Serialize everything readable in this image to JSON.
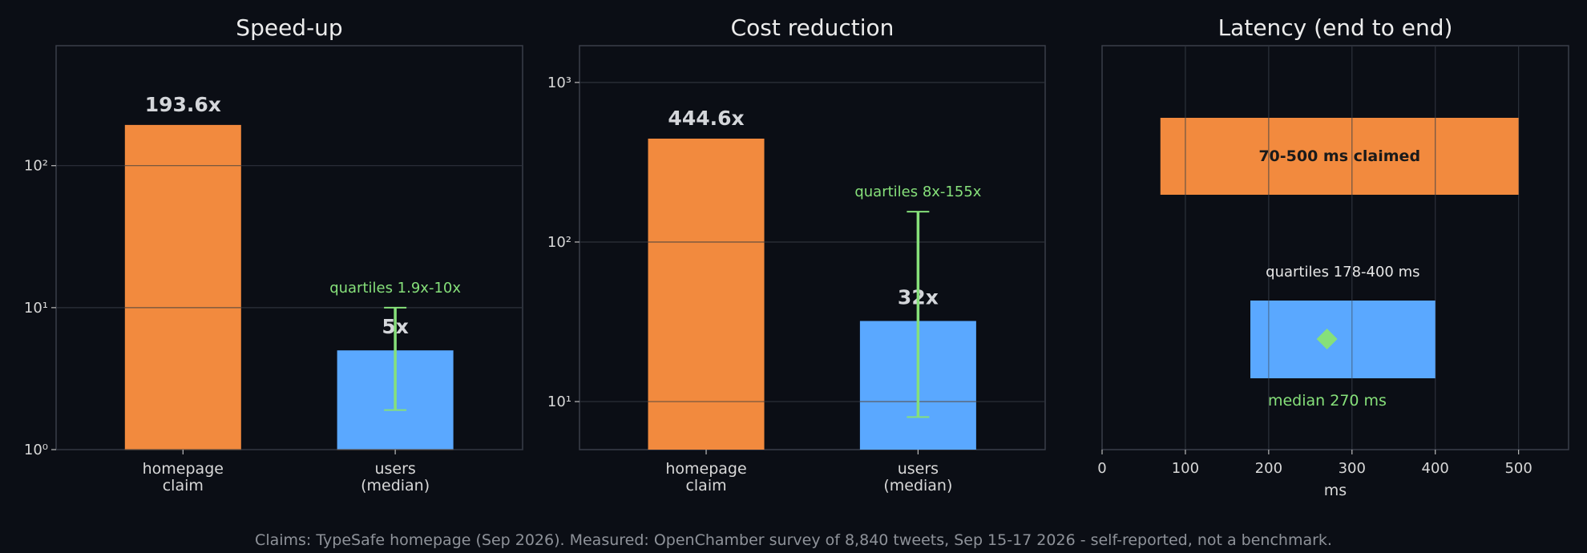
{
  "chart_data": [
    {
      "type": "bar",
      "title": "Speed-up",
      "yscale": "log",
      "ylim": [
        1,
        700
      ],
      "yticks": [
        "10⁰",
        "10¹",
        "10²"
      ],
      "categories": [
        "homepage\nclaim",
        "users\n(median)"
      ],
      "values": [
        193.6,
        5
      ],
      "value_labels": [
        "193.6x",
        "5x"
      ],
      "error": {
        "category": 1,
        "low": 1.9,
        "high": 10,
        "label": "quartiles 1.9x-10x"
      },
      "colors": [
        "#f28a3e",
        "#5aa8ff"
      ]
    },
    {
      "type": "bar",
      "title": "Cost reduction",
      "yscale": "log",
      "ylim": [
        5,
        1700
      ],
      "yticks": [
        "10¹",
        "10²",
        "10³"
      ],
      "categories": [
        "homepage\nclaim",
        "users\n(median)"
      ],
      "values": [
        444.6,
        32
      ],
      "value_labels": [
        "444.6x",
        "32x"
      ],
      "error": {
        "category": 1,
        "low": 8,
        "high": 155,
        "label": "quartiles 8x-155x"
      },
      "colors": [
        "#f28a3e",
        "#5aa8ff"
      ]
    },
    {
      "type": "range-bar",
      "title": "Latency (end to end)",
      "xlabel": "ms",
      "xlim": [
        0,
        560
      ],
      "xticks": [
        0,
        100,
        200,
        300,
        400,
        500
      ],
      "claimed": {
        "low": 70,
        "high": 500,
        "label": "70-500 ms claimed"
      },
      "measured": {
        "low": 178,
        "high": 400,
        "median": 270,
        "label": "quartiles 178-400 ms",
        "median_label": "median 270 ms"
      },
      "colors": {
        "claimed": "#f28a3e",
        "measured": "#5aa8ff",
        "median": "#86e07a"
      }
    }
  ],
  "footer": "Claims: TypeSafe homepage (Sep 2026). Measured: OpenChamber survey of 8,840 tweets, Sep 15-17 2026 - self-reported, not a benchmark."
}
